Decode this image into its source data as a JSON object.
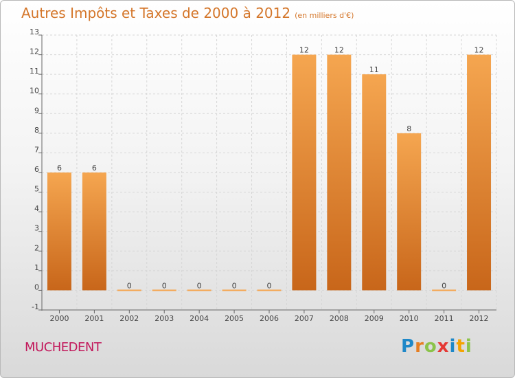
{
  "title": "Autres Impôts et Taxes de 2000 à 2012",
  "subtitle": "(en milliers d'€)",
  "commune": "MUCHEDENT",
  "logo": {
    "letters": [
      "P",
      "r",
      "o",
      "x",
      "i",
      "t",
      "i"
    ],
    "colors": [
      "#1e88c8",
      "#e67e22",
      "#8bc34a",
      "#e53935",
      "#1e88c8",
      "#f4a300",
      "#8bc34a"
    ]
  },
  "colors": {
    "bar_light": "#f5a650",
    "bar_dark": "#c8661a",
    "title": "#d4762a",
    "commune": "#c2185b"
  },
  "chart_data": {
    "type": "bar",
    "categories": [
      "2000",
      "2001",
      "2002",
      "2003",
      "2004",
      "2005",
      "2006",
      "2007",
      "2008",
      "2009",
      "2010",
      "2011",
      "2012"
    ],
    "values": [
      6,
      6,
      0,
      0,
      0,
      0,
      0,
      12,
      12,
      11,
      8,
      0,
      12
    ],
    "data_labels": [
      "6",
      "6",
      "0",
      "0",
      "0",
      "0",
      "0",
      "12",
      "12",
      "11",
      "8",
      "0",
      "12"
    ],
    "yticks": [
      -1,
      0,
      1,
      2,
      3,
      4,
      5,
      6,
      7,
      8,
      9,
      10,
      11,
      12,
      13
    ],
    "ylim": [
      -1,
      13
    ],
    "grid": true,
    "title": "Autres Impôts et Taxes de 2000 à 2012",
    "xlabel": "",
    "ylabel": ""
  }
}
